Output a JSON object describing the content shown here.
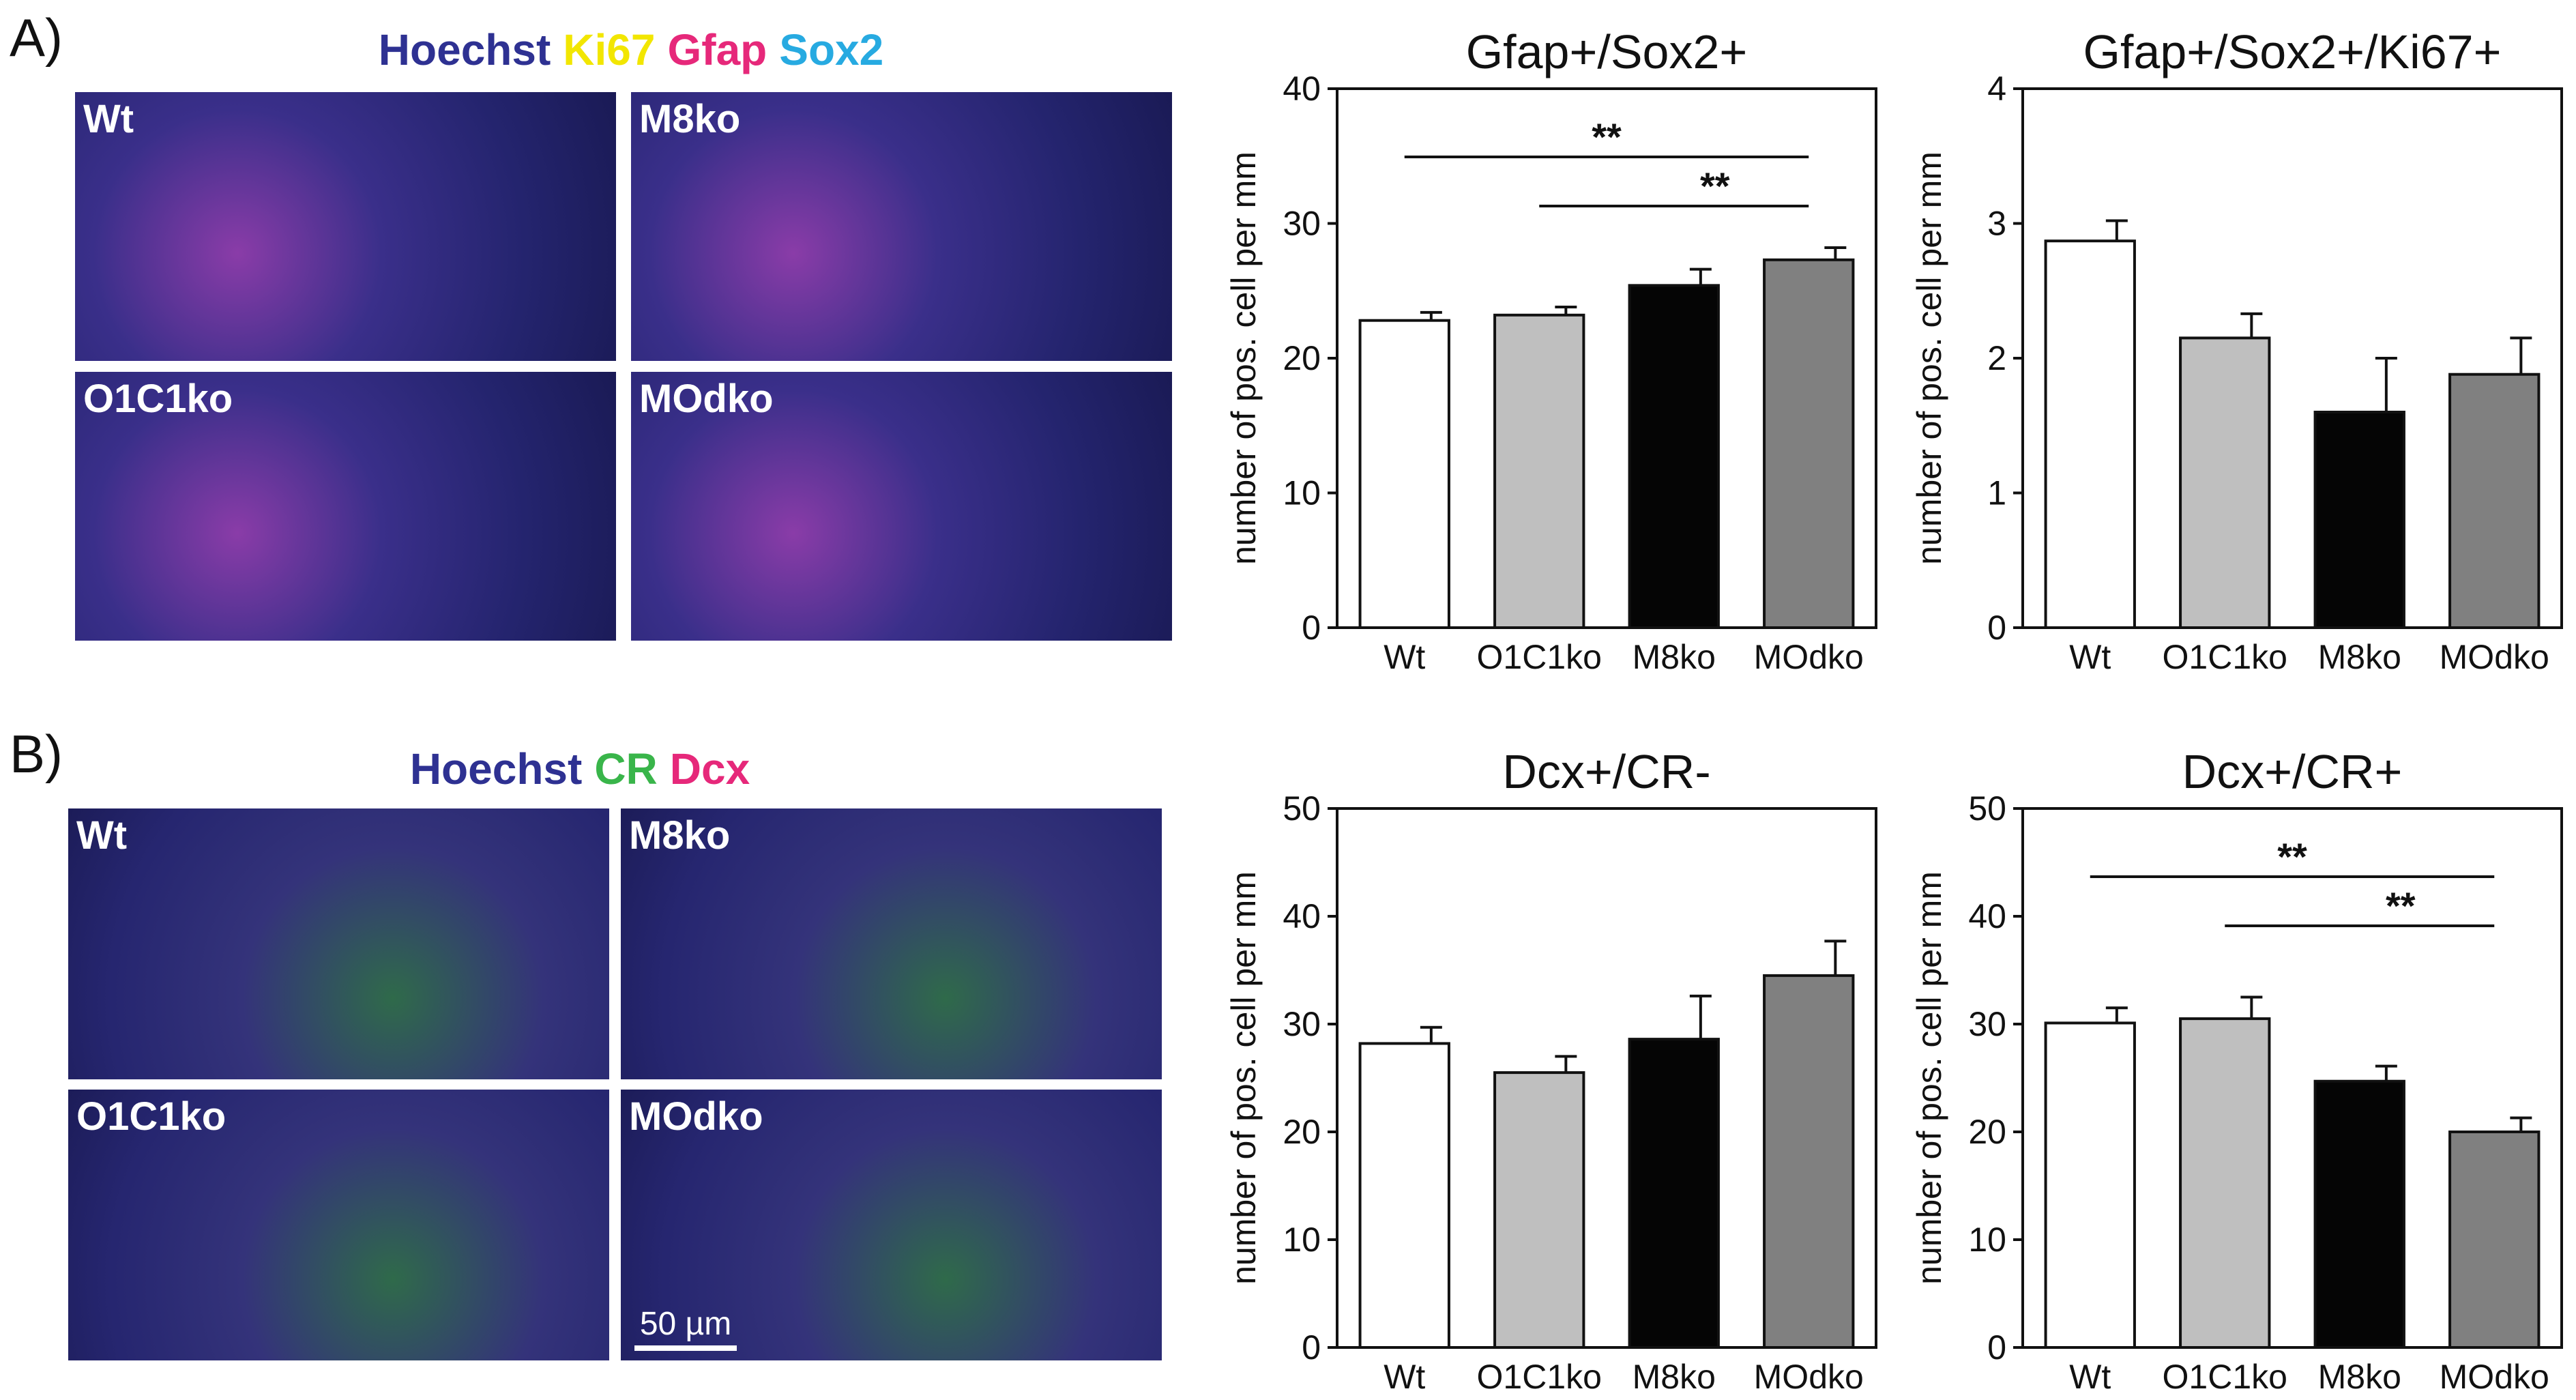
{
  "panel_labels": {
    "a": "A)",
    "b": "B)"
  },
  "legends": {
    "a": [
      {
        "text": "Hoechst",
        "color": "#2e3192"
      },
      {
        "text": "Ki67",
        "color": "#f2e600"
      },
      {
        "text": "Gfap",
        "color": "#e6287a"
      },
      {
        "text": "Sox2",
        "color": "#27aae1"
      }
    ],
    "b": [
      {
        "text": "Hoechst",
        "color": "#2e3192"
      },
      {
        "text": "CR",
        "color": "#39b54a"
      },
      {
        "text": "Dcx",
        "color": "#e6287a"
      }
    ]
  },
  "micrographs": {
    "a": [
      {
        "label": "Wt",
        "name": "micrograph-a-wt"
      },
      {
        "label": "M8ko",
        "name": "micrograph-a-m8ko"
      },
      {
        "label": "O1C1ko",
        "name": "micrograph-a-o1c1ko"
      },
      {
        "label": "MOdko",
        "name": "micrograph-a-modko"
      }
    ],
    "b": [
      {
        "label": "Wt",
        "name": "micrograph-b-wt"
      },
      {
        "label": "M8ko",
        "name": "micrograph-b-m8ko"
      },
      {
        "label": "O1C1ko",
        "name": "micrograph-b-o1c1ko"
      },
      {
        "label": "MOdko",
        "name": "micrograph-b-modko"
      }
    ],
    "scale_bar": "50 µm"
  },
  "bar_colors": [
    "#ffffff",
    "#bfbfbf",
    "#050505",
    "#808080"
  ],
  "chart_data": [
    {
      "type": "bar",
      "title": "Gfap+/Sox2+",
      "ylabel": "number of pos. cell per mm",
      "categories": [
        "Wt",
        "O1C1ko",
        "M8ko",
        "MOdko"
      ],
      "values": [
        22.8,
        23.2,
        25.4,
        27.3
      ],
      "errors": [
        0.6,
        0.6,
        1.2,
        0.9
      ],
      "ylim": [
        0,
        40
      ],
      "yticks": [
        0,
        10,
        20,
        30,
        40
      ],
      "significance": [
        {
          "from": 0,
          "to": 3,
          "label": "**"
        },
        {
          "from": 1,
          "to": 3,
          "label": "**"
        }
      ]
    },
    {
      "type": "bar",
      "title": "Gfap+/Sox2+/Ki67+",
      "ylabel": "number of pos. cell per mm",
      "categories": [
        "Wt",
        "O1C1ko",
        "M8ko",
        "MOdko"
      ],
      "values": [
        2.87,
        2.15,
        1.6,
        1.88
      ],
      "errors": [
        0.15,
        0.18,
        0.4,
        0.27
      ],
      "ylim": [
        0,
        4
      ],
      "yticks": [
        0,
        1,
        2,
        3,
        4
      ],
      "significance": []
    },
    {
      "type": "bar",
      "title": "Dcx+/CR-",
      "ylabel": "number of pos. cell per mm",
      "categories": [
        "Wt",
        "O1C1ko",
        "M8ko",
        "MOdko"
      ],
      "values": [
        28.2,
        25.5,
        28.6,
        34.5
      ],
      "errors": [
        1.5,
        1.5,
        4.0,
        3.2
      ],
      "ylim": [
        0,
        50
      ],
      "yticks": [
        0,
        10,
        20,
        30,
        40,
        50
      ],
      "significance": []
    },
    {
      "type": "bar",
      "title": "Dcx+/CR+",
      "ylabel": "number of pos. cell per mm",
      "categories": [
        "Wt",
        "O1C1ko",
        "M8ko",
        "MOdko"
      ],
      "values": [
        30.1,
        30.5,
        24.7,
        20.0
      ],
      "errors": [
        1.4,
        2.0,
        1.4,
        1.3
      ],
      "ylim": [
        0,
        50
      ],
      "yticks": [
        0,
        10,
        20,
        30,
        40,
        50
      ],
      "significance": [
        {
          "from": 0,
          "to": 3,
          "label": "**"
        },
        {
          "from": 1,
          "to": 3,
          "label": "**"
        }
      ]
    }
  ]
}
